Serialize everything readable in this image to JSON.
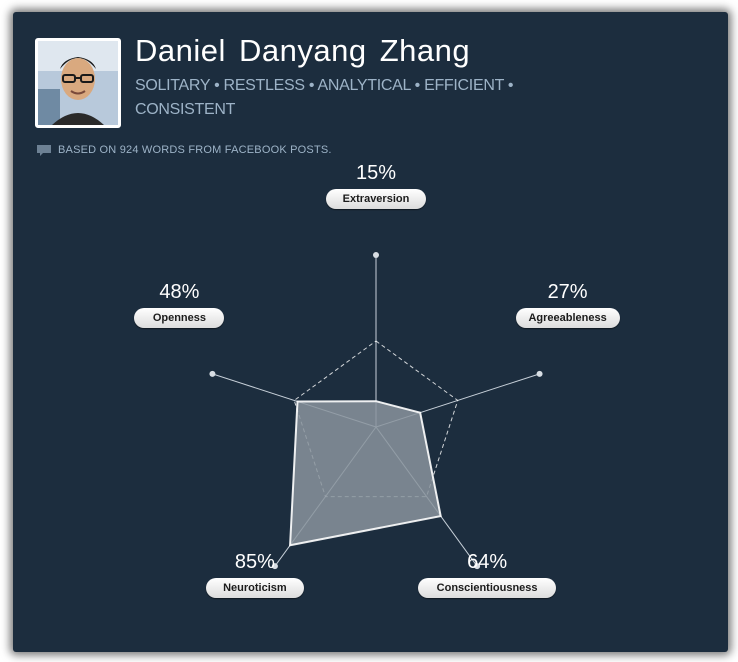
{
  "profile": {
    "name": "Daniel Danyang Zhang",
    "traits_line": "SOLITARY • RESTLESS • ANALYTICAL • EFFICIENT • CONSISTENT",
    "basis": "BASED ON 924 WORDS FROM FACEBOOK POSTS.",
    "basis_icon": "comment-icon",
    "avatar": "user-photo"
  },
  "dimensions": [
    {
      "label": "Extraversion",
      "percent_label": "15%",
      "value": 15
    },
    {
      "label": "Agreeableness",
      "percent_label": "27%",
      "value": 27
    },
    {
      "label": "Conscientiousness",
      "percent_label": "64%",
      "value": 64
    },
    {
      "label": "Neuroticism",
      "percent_label": "85%",
      "value": 85
    },
    {
      "label": "Openness",
      "percent_label": "48%",
      "value": 48
    }
  ],
  "colors": {
    "background": "#1c2d3e",
    "name_text": "#ffffff",
    "trait_text": "#9db3c7",
    "radar_fill": "#8a949e",
    "radar_stroke": "#ffffff"
  }
}
